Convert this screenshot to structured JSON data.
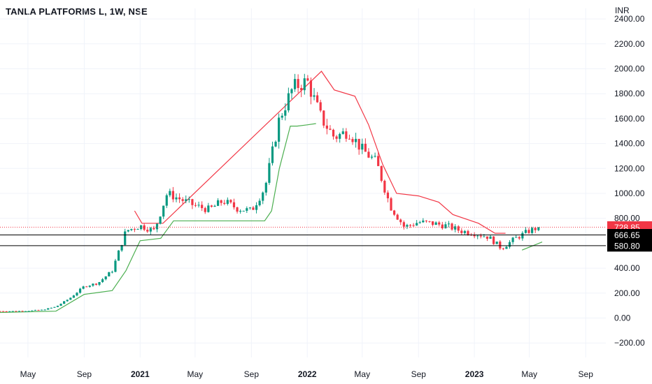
{
  "header": {
    "title": "TANLA PLATFORMS L, 1W, NSE",
    "currency": "INR"
  },
  "chart_data": {
    "type": "candlestick",
    "title": "TANLA PLATFORMS L, 1W, NSE",
    "ylabel": "INR",
    "ylim": [
      -250,
      2450
    ],
    "y_ticks": [
      "2400.00",
      "2200.00",
      "2000.00",
      "1800.00",
      "1600.00",
      "1400.00",
      "1200.00",
      "1000.00",
      "800.00",
      "400.00",
      "200.00",
      "0.00",
      "−200.00"
    ],
    "y_tick_values": [
      2400,
      2200,
      2000,
      1800,
      1600,
      1400,
      1200,
      1000,
      800,
      400,
      200,
      0,
      -200
    ],
    "x_ticks": [
      {
        "label": "May",
        "date": "2020-05-01",
        "bold": false
      },
      {
        "label": "Sep",
        "date": "2020-09-01",
        "bold": false
      },
      {
        "label": "2021",
        "date": "2021-01-01",
        "bold": true
      },
      {
        "label": "May",
        "date": "2021-05-01",
        "bold": false
      },
      {
        "label": "Sep",
        "date": "2021-09-01",
        "bold": false
      },
      {
        "label": "2022",
        "date": "2022-01-01",
        "bold": true
      },
      {
        "label": "May",
        "date": "2022-05-01",
        "bold": false
      },
      {
        "label": "Sep",
        "date": "2022-09-01",
        "bold": false
      },
      {
        "label": "2023",
        "date": "2023-01-01",
        "bold": true
      },
      {
        "label": "May",
        "date": "2023-05-01",
        "bold": false
      },
      {
        "label": "Sep",
        "date": "2023-09-01",
        "bold": false
      }
    ],
    "x_range": [
      "2020-03-01",
      "2023-10-15"
    ],
    "price_close_path": [
      [
        "2020-03-01",
        55
      ],
      [
        "2020-04-01",
        55
      ],
      [
        "2020-05-01",
        58
      ],
      [
        "2020-06-01",
        65
      ],
      [
        "2020-07-01",
        90
      ],
      [
        "2020-08-01",
        160
      ],
      [
        "2020-09-01",
        255
      ],
      [
        "2020-10-01",
        280
      ],
      [
        "2020-11-01",
        380
      ],
      [
        "2020-12-01",
        700
      ],
      [
        "2021-01-01",
        740
      ],
      [
        "2021-02-01",
        700
      ],
      [
        "2021-03-01",
        1000
      ],
      [
        "2021-04-01",
        950
      ],
      [
        "2021-05-01",
        900
      ],
      [
        "2021-06-01",
        870
      ],
      [
        "2021-07-01",
        940
      ],
      [
        "2021-08-01",
        880
      ],
      [
        "2021-09-01",
        860
      ],
      [
        "2021-10-01",
        1050
      ],
      [
        "2021-11-01",
        1600
      ],
      [
        "2021-12-01",
        1850
      ],
      [
        "2022-01-01",
        1900
      ],
      [
        "2022-02-01",
        1600
      ],
      [
        "2022-03-01",
        1450
      ],
      [
        "2022-04-01",
        1500
      ],
      [
        "2022-05-01",
        1350
      ],
      [
        "2022-06-01",
        1250
      ],
      [
        "2022-07-01",
        900
      ],
      [
        "2022-08-01",
        730
      ],
      [
        "2022-09-01",
        770
      ],
      [
        "2022-10-01",
        760
      ],
      [
        "2022-11-01",
        740
      ],
      [
        "2022-12-01",
        700
      ],
      [
        "2023-01-01",
        680
      ],
      [
        "2023-02-01",
        650
      ],
      [
        "2023-03-01",
        560
      ],
      [
        "2023-04-01",
        640
      ],
      [
        "2023-05-01",
        700
      ],
      [
        "2023-05-22",
        729
      ]
    ],
    "support_trail": [
      [
        "2020-03-01",
        45
      ],
      [
        "2020-07-01",
        55
      ],
      [
        "2020-09-01",
        190
      ],
      [
        "2020-11-01",
        220
      ],
      [
        "2020-12-01",
        380
      ],
      [
        "2021-01-01",
        620
      ],
      [
        "2021-02-15",
        640
      ],
      [
        "2021-03-15",
        780
      ],
      [
        "2021-09-30",
        780
      ],
      [
        "2021-10-15",
        860
      ],
      [
        "2021-11-01",
        1200
      ],
      [
        "2021-11-25",
        1540
      ],
      [
        "2021-12-10",
        1540
      ],
      [
        "2022-01-01",
        1550
      ],
      [
        "2022-01-20",
        1560
      ]
    ],
    "resistance_trail": [
      [
        "2020-12-20",
        860
      ],
      [
        "2021-01-05",
        760
      ],
      [
        "2021-02-20",
        760
      ],
      [
        "2022-02-01",
        1980
      ],
      [
        "2022-03-01",
        1830
      ],
      [
        "2022-04-15",
        1780
      ],
      [
        "2022-05-15",
        1550
      ],
      [
        "2022-06-15",
        1230
      ],
      [
        "2022-07-15",
        1000
      ],
      [
        "2022-09-01",
        980
      ],
      [
        "2022-10-15",
        930
      ],
      [
        "2022-11-15",
        830
      ],
      [
        "2023-01-10",
        760
      ],
      [
        "2023-02-15",
        680
      ],
      [
        "2023-03-10",
        680
      ]
    ],
    "support_trail_2": [
      [
        "2023-04-15",
        545
      ],
      [
        "2023-05-29",
        610
      ]
    ],
    "price_lines": [
      {
        "value": 728.85,
        "label": "728.85",
        "style": "dotted",
        "color": "#f23645"
      },
      {
        "value": 666.65,
        "label": "666.65",
        "style": "solid",
        "color": "#000000"
      },
      {
        "value": 580.8,
        "label": "580.80",
        "style": "solid",
        "color": "#000000"
      }
    ],
    "colors": {
      "up": "#089981",
      "down": "#f23645",
      "support_line": "#4caf50",
      "resistance_line": "#f23645",
      "grid": "#f0f3fa",
      "background": "#ffffff"
    },
    "grid": true
  }
}
